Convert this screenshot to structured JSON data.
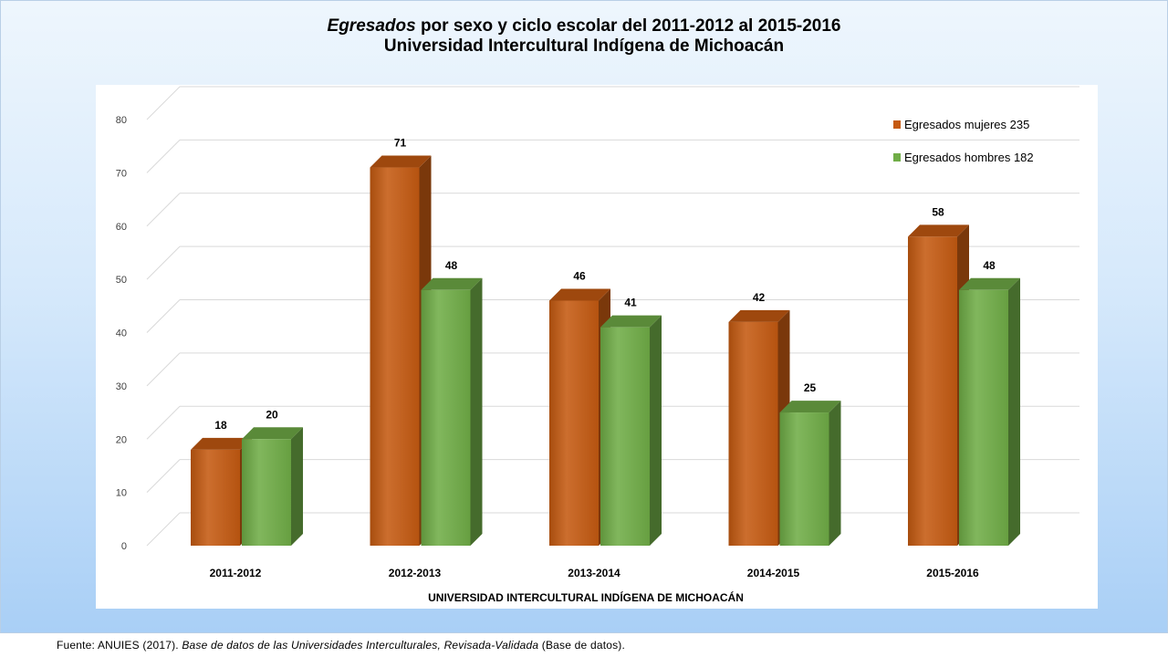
{
  "title": {
    "line1_italic": "Egresados",
    "line1_rest": " por sexo y ciclo escolar del 2011-2012 al 2015-2016",
    "line2": "Universidad Intercultural Indígena de Michoacán"
  },
  "chart_data": {
    "type": "bar",
    "categories": [
      "2011-2012",
      "2012-2013",
      "2013-2014",
      "2014-2015",
      "2015-2016"
    ],
    "series": [
      {
        "name": "Egresados mujeres 235",
        "values": [
          18,
          71,
          46,
          42,
          58
        ],
        "color": "#c55a11"
      },
      {
        "name": "Egresados hombres 182",
        "values": [
          20,
          48,
          41,
          25,
          48
        ],
        "color": "#70ad47"
      }
    ],
    "yticks": [
      "0",
      "10",
      "20",
      "30",
      "40",
      "50",
      "60",
      "70",
      "80"
    ],
    "ylim": [
      0,
      80
    ],
    "xlabel": "UNIVERSIDAD INTERCULTURAL INDÍGENA DE MICHOACÁN",
    "ylabel": "",
    "grid": true,
    "legend_position": "top-right",
    "three_d": true
  },
  "source": {
    "prefix": "Fuente:  ANUIES  (2017). ",
    "italic": "Base de datos de las Universidades  Interculturales, Revisada-Validada",
    "suffix": "  (Base de datos)."
  }
}
